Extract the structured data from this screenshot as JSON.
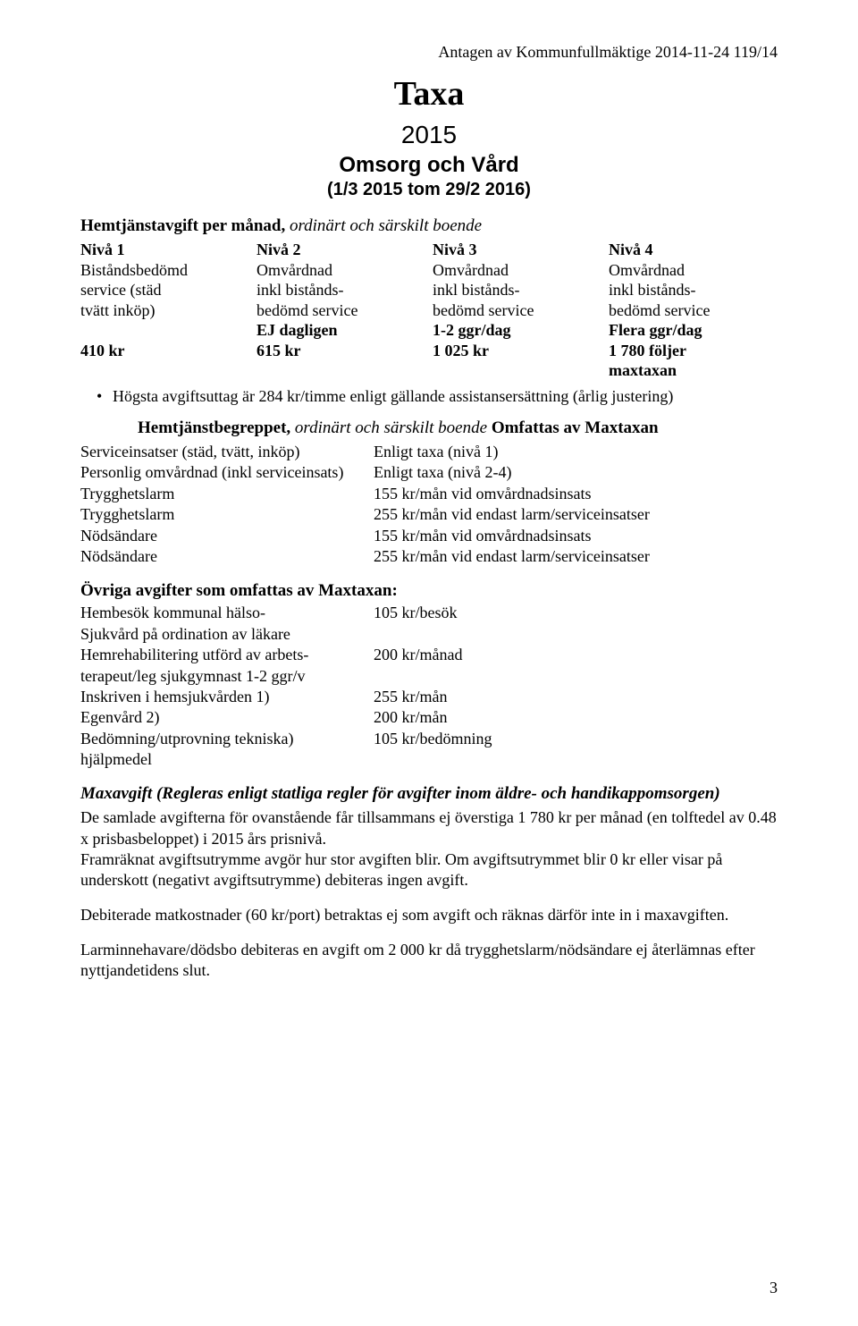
{
  "header_right": "Antagen av Kommunfullmäktige 2014-11-24 119/14",
  "title_main": "Taxa",
  "title_year": "2015",
  "title_sub": "Omsorg och Vård",
  "title_range": "(1/3 2015 tom 29/2 2016)",
  "hemtjanst_heading_bold": "Hemtjänstavgift per månad, ",
  "hemtjanst_heading_italic": "ordinärt och särskilt boende",
  "table": {
    "niva": [
      "Nivå 1",
      "Nivå 2",
      "Nivå 3",
      "Nivå 4"
    ],
    "r1": [
      "Biståndsbedömd",
      "Omvårdnad",
      "Omvårdnad",
      "Omvårdnad"
    ],
    "r2": [
      "service (städ",
      "inkl bistånds-",
      "inkl bistånds-",
      "inkl bistånds-"
    ],
    "r3": [
      "tvätt inköp)",
      "bedömd service",
      "bedömd service",
      "bedömd service"
    ],
    "r4": [
      "",
      "EJ dagligen",
      "1-2 ggr/dag",
      "Flera ggr/dag"
    ],
    "r5": [
      "410 kr",
      "615 kr",
      "1 025 kr",
      "1 780 följer"
    ],
    "r6": [
      "",
      "",
      "",
      "maxtaxan"
    ]
  },
  "bullet_text": "Högsta avgiftsuttag är 284 kr/timme enligt gällande assistansersättning (årlig justering)",
  "hemtj2_bold": "Hemtjänstbegreppet, ",
  "hemtj2_italic": "ordinärt och särskilt boende ",
  "hemtj2_tail": "Omfattas av Maxtaxan",
  "kv": [
    {
      "k": "Serviceinsatser (städ, tvätt, inköp)",
      "v": "Enligt taxa (nivå 1)"
    },
    {
      "k": "Personlig omvårdnad (inkl serviceinsats)",
      "v": "Enligt taxa (nivå 2-4)"
    },
    {
      "k": "Trygghetslarm",
      "v": "155 kr/mån vid omvårdnadsinsats"
    },
    {
      "k": "Trygghetslarm",
      "v": "255 kr/mån vid endast larm/serviceinsatser"
    },
    {
      "k": "Nödsändare",
      "v": "155 kr/mån vid omvårdnadsinsats"
    },
    {
      "k": "Nödsändare",
      "v": "255 kr/mån vid endast larm/serviceinsatser"
    }
  ],
  "ovriga_heading": "Övriga avgifter som omfattas av Maxtaxan:",
  "ovriga": [
    {
      "k": "Hembesök kommunal hälso-",
      "v": "105 kr/besök"
    },
    {
      "k": "Sjukvård på ordination av läkare",
      "v": ""
    },
    {
      "k": "Hemrehabilitering utförd av arbets-",
      "v": "200 kr/månad"
    },
    {
      "k": "terapeut/leg sjukgymnast 1-2 ggr/v",
      "v": ""
    },
    {
      "k": "Inskriven i hemsjukvården 1)",
      "v": "255 kr/mån"
    },
    {
      "k": "Egenvård 2)",
      "v": "200 kr/mån"
    },
    {
      "k": "Bedömning/utprovning tekniska)",
      "v": "105 kr/bedömning"
    },
    {
      "k": "hjälpmedel",
      "v": ""
    }
  ],
  "maxavgift_heading": "Maxavgift (Regleras enligt statliga regler för avgifter inom äldre- och handikappomsorgen)",
  "para1": "De samlade avgifterna för ovanstående får tillsammans ej överstiga 1 780 kr per månad (en tolftedel av 0.48 x prisbasbeloppet) i 2015 års prisnivå.",
  "para2": "Framräknat avgiftsutrymme avgör hur stor avgiften blir. Om avgiftsutrymmet blir 0 kr eller visar på underskott (negativt avgiftsutrymme) debiteras ingen avgift.",
  "para3": "Debiterade matkostnader (60 kr/port) betraktas ej som avgift och räknas därför inte in i maxavgiften.",
  "para4": "Larminnehavare/dödsbo debiteras en avgift om 2 000 kr då trygghetslarm/nödsändare ej återlämnas efter nyttjandetidens slut.",
  "page_number": "3"
}
